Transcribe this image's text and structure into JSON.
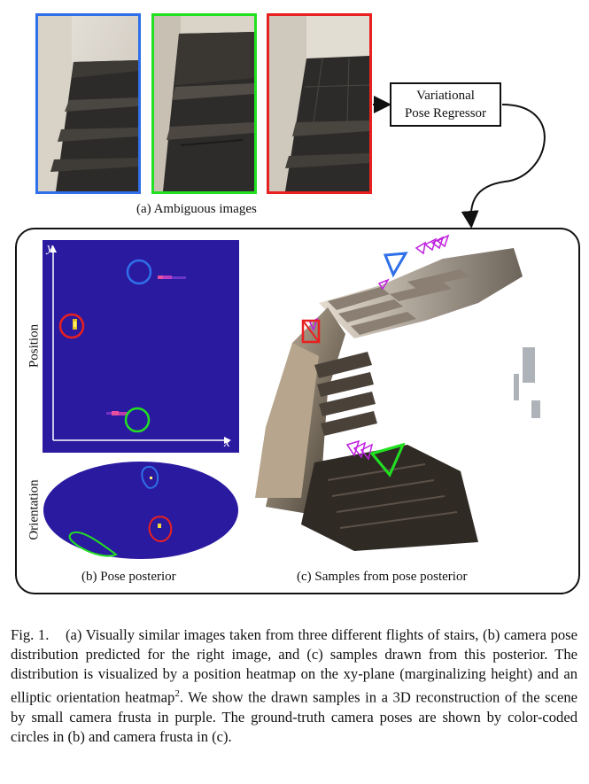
{
  "ambiguous_images": {
    "caption": "(a) Ambiguous images",
    "frames": [
      {
        "border": "#2f6fe8"
      },
      {
        "border": "#22e022"
      },
      {
        "border": "#e82020"
      }
    ]
  },
  "regressor": {
    "line1": "Variational",
    "line2": "Pose Regressor"
  },
  "pose_posterior": {
    "caption": "(b) Pose posterior",
    "position_label": "Position",
    "orientation_label": "Orientation",
    "axis_x": "x",
    "axis_y": "y",
    "heatmap_bg": "#2a1aa0"
  },
  "samples": {
    "caption": "(c) Samples from pose posterior",
    "frustum_color": "#c020e0"
  },
  "figure_caption": {
    "label": "Fig. 1.",
    "text": "(a) Visually similar images taken from three different flights of stairs, (b) camera pose distribution predicted for the right image, and (c) samples drawn from this posterior. The distribution is visualized by a position heatmap on the xy-plane (marginalizing height) and an elliptic orientation heatmap",
    "footnote": "2",
    "text_after": ". We show the drawn samples in a 3D reconstruction of the scene by small camera frusta in purple. The ground-truth camera poses are shown by color-coded circles in (b) and camera frusta in (c)."
  },
  "colors": {
    "blue": "#2f6fe8",
    "green": "#22e022",
    "red": "#e82020"
  }
}
